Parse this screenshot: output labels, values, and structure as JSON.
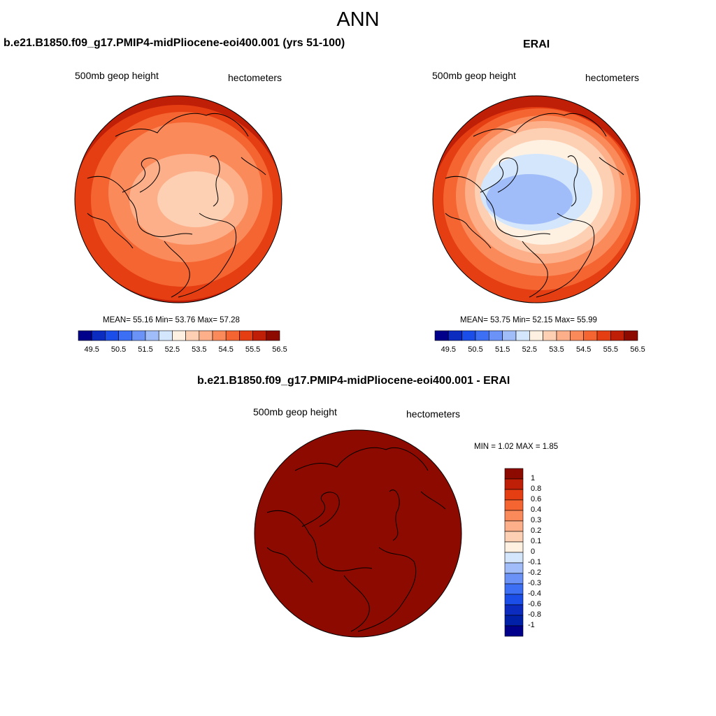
{
  "figure": {
    "title": "ANN"
  },
  "palette": [
    "#00008b",
    "#0b2cbf",
    "#1b4ee8",
    "#3d6ff5",
    "#6b93f7",
    "#a0bdf9",
    "#d4e6fb",
    "#fff1e2",
    "#fdd0b3",
    "#fcaf89",
    "#fb8a5a",
    "#f46532",
    "#e53e13",
    "#bf1e07",
    "#8c0a00"
  ],
  "panels": {
    "left": {
      "title": "b.e21.B1850.f09_g17.PMIP4-midPliocene-eoi400.001 (yrs 51-100)",
      "variable": "500mb geop height",
      "units": "hectometers",
      "stats_line": "MEAN=  55.16  Min=  53.76  Max=  57.28",
      "stats": {
        "mean": 55.16,
        "min": 53.76,
        "max": 57.28
      }
    },
    "right": {
      "title": "ERAI",
      "variable": "500mb geop height",
      "units": "hectometers",
      "stats_line": "MEAN=  53.75  Min=  52.15  Max=  55.99",
      "stats": {
        "mean": 53.75,
        "min": 52.15,
        "max": 55.99
      }
    },
    "diff": {
      "title": "b.e21.B1850.f09_g17.PMIP4-midPliocene-eoi400.001 - ERAI",
      "variable": "500mb geop height",
      "units": "hectometers",
      "stats_line": "MIN =   1.02 MAX =   1.85",
      "stats": {
        "min": 1.02,
        "max": 1.85
      }
    }
  },
  "colorbar_horizontal": {
    "tick_labels": [
      "49.5",
      "50.5",
      "51.5",
      "52.5",
      "53.5",
      "54.5",
      "55.5",
      "56.5"
    ]
  },
  "colorbar_vertical": {
    "tick_labels": [
      "1",
      "0.8",
      "0.6",
      "0.4",
      "0.3",
      "0.2",
      "0.1",
      "0",
      "-0.1",
      "-0.2",
      "-0.3",
      "-0.4",
      "-0.6",
      "-0.8",
      "-1"
    ]
  }
}
